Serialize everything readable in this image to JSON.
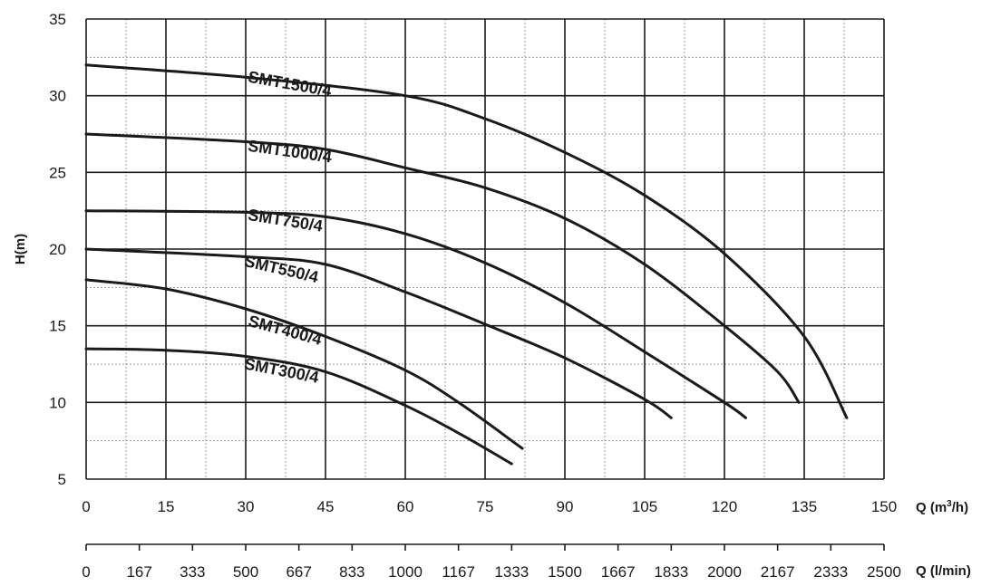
{
  "chart_data": {
    "type": "line",
    "xlabel": "Q (m³/h)",
    "ylabel": "H(m)",
    "secondary_xlabel": "Q (l/min)",
    "xlim": [
      0,
      150
    ],
    "ylim": [
      5,
      35
    ],
    "x_ticks": [
      "0",
      "15",
      "30",
      "45",
      "60",
      "75",
      "90",
      "105",
      "120",
      "135",
      "150"
    ],
    "y_ticks": [
      "5",
      "10",
      "15",
      "20",
      "25",
      "30",
      "35"
    ],
    "secondary_ticks": [
      "0",
      "167",
      "333",
      "500",
      "667",
      "833",
      "1000",
      "1167",
      "1333",
      "1500",
      "1667",
      "1833",
      "2000",
      "2167",
      "2333",
      "2500"
    ],
    "grid": true,
    "series": [
      {
        "name": "SMT1500/4",
        "x": [
          0,
          30,
          60,
          75,
          90,
          105,
          120,
          135,
          143
        ],
        "y": [
          32,
          31.2,
          30,
          28.5,
          26.3,
          23.5,
          19.7,
          14.3,
          9
        ]
      },
      {
        "name": "SMT1000/4",
        "x": [
          0,
          30,
          45,
          60,
          75,
          90,
          105,
          120,
          130,
          134
        ],
        "y": [
          27.5,
          27,
          26.5,
          25.3,
          24,
          22,
          19,
          15,
          12,
          10
        ]
      },
      {
        "name": "SMT750/4",
        "x": [
          0,
          30,
          45,
          60,
          75,
          90,
          105,
          120,
          124
        ],
        "y": [
          22.5,
          22.4,
          22.1,
          21,
          19.1,
          16.5,
          13.3,
          10,
          9
        ]
      },
      {
        "name": "SMT550/4",
        "x": [
          0,
          30,
          45,
          60,
          75,
          90,
          105,
          110
        ],
        "y": [
          20,
          19.5,
          19,
          17.2,
          15.1,
          12.9,
          10.2,
          9
        ]
      },
      {
        "name": "SMT400/4",
        "x": [
          0,
          15,
          30,
          45,
          60,
          70,
          82
        ],
        "y": [
          18,
          17.4,
          16.1,
          14.3,
          12.1,
          10,
          7
        ]
      },
      {
        "name": "SMT300/4",
        "x": [
          0,
          15,
          30,
          45,
          60,
          70,
          80
        ],
        "y": [
          13.5,
          13.4,
          13,
          12,
          9.8,
          8,
          6
        ]
      }
    ]
  }
}
